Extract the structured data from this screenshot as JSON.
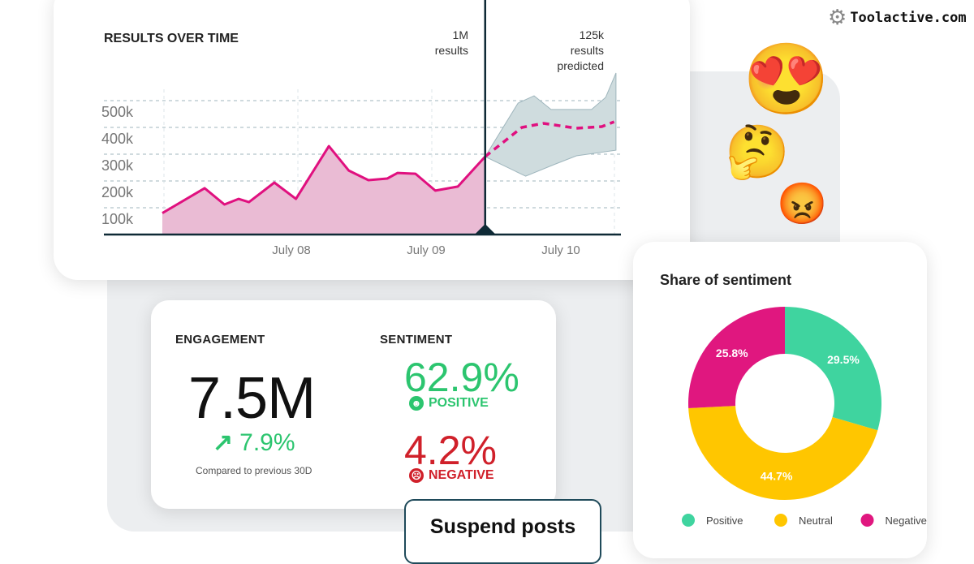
{
  "chart_data": {
    "type": "area",
    "title": "RESULTS OVER TIME",
    "y_ticks": [
      "100k",
      "200k",
      "300k",
      "400k",
      "500k"
    ],
    "x_ticks": [
      "July 08",
      "July 09",
      "July 10"
    ],
    "ylim": [
      0,
      500000
    ],
    "grid": "dashed",
    "actual": [
      [
        "Jul 07 01:00",
        80000
      ],
      [
        "Jul 07 08:30",
        173000
      ],
      [
        "Jul 07 12:00",
        112000
      ],
      [
        "Jul 07 14:30",
        133000
      ],
      [
        "Jul 07 16:20",
        121000
      ],
      [
        "Jul 07 20:50",
        194000
      ],
      [
        "Jul 08 00:40",
        133000
      ],
      [
        "Jul 08 06:30",
        330000
      ],
      [
        "Jul 08 10:00",
        239000
      ],
      [
        "Jul 08 13:30",
        203000
      ],
      [
        "Jul 08 16:50",
        209000
      ],
      [
        "Jul 08 18:40",
        230000
      ],
      [
        "Jul 08 21:50",
        227000
      ],
      [
        "Jul 09 01:20",
        164000
      ],
      [
        "Jul 09 05:20",
        179000
      ],
      [
        "Jul 09 10:10",
        291000
      ]
    ],
    "predicted": [
      [
        "Jul 09 10:10",
        291000
      ],
      [
        "Jul 09 16:40",
        400000
      ],
      [
        "Jul 09 20:30",
        415000
      ],
      [
        "Jul 10 02:20",
        397000
      ],
      [
        "Jul 10 06:50",
        403000
      ],
      [
        "Jul 10 09:00",
        421000
      ]
    ],
    "upper": [
      [
        "Jul 09 10:10",
        291000
      ],
      [
        "Jul 09 16:00",
        491000
      ],
      [
        "Jul 09 18:50",
        518000
      ],
      [
        "Jul 09 21:50",
        467000
      ],
      [
        "Jul 10 05:00",
        467000
      ],
      [
        "Jul 10 07:30",
        512000
      ],
      [
        "Jul 10 09:20",
        603000
      ]
    ],
    "lower": [
      [
        "Jul 09 10:10",
        291000
      ],
      [
        "Jul 09 17:20",
        218000
      ],
      [
        "Jul 09 22:20",
        261000
      ],
      [
        "Jul 10 02:20",
        294000
      ],
      [
        "Jul 10 09:20",
        315000
      ]
    ],
    "marker_time": "Jul 09 10:10",
    "annotations": {
      "current_value": "1M",
      "current_unit": "results",
      "predicted_value": "125k",
      "predicted_unit": "results",
      "predicted_label": "predicted"
    },
    "colors": {
      "line": "#e0107f",
      "fill": "#eabbd4",
      "band": "#cfdcde",
      "axis": "#0f2a36"
    }
  },
  "engagement": {
    "label": "ENGAGEMENT",
    "value": "7.5M",
    "change": "7.9%",
    "note": "Compared to previous 30D",
    "color": "#2cc56f"
  },
  "sentiment": {
    "label": "SENTIMENT",
    "positive_value": "62.9%",
    "positive_label": "POSITIVE",
    "negative_value": "4.2%",
    "negative_label": "NEGATIVE",
    "positive_color": "#2cc56f",
    "negative_color": "#d0202a"
  },
  "suspend": {
    "label": "Suspend posts"
  },
  "share": {
    "title": "Share of sentiment",
    "chart_data": {
      "type": "pie",
      "donut": true,
      "slices": [
        {
          "name": "Positive",
          "value": 29.5,
          "label": "29.5%",
          "color": "#3fd49f"
        },
        {
          "name": "Neutral",
          "value": 44.7,
          "label": "44.7%",
          "color": "#ffc600"
        },
        {
          "name": "Negative",
          "value": 25.8,
          "label": "25.8%",
          "color": "#e0177f"
        }
      ]
    }
  },
  "watermark": "Toolactive.com",
  "emojis": [
    "heart-eyes-face",
    "thinking-face",
    "angry-face"
  ]
}
